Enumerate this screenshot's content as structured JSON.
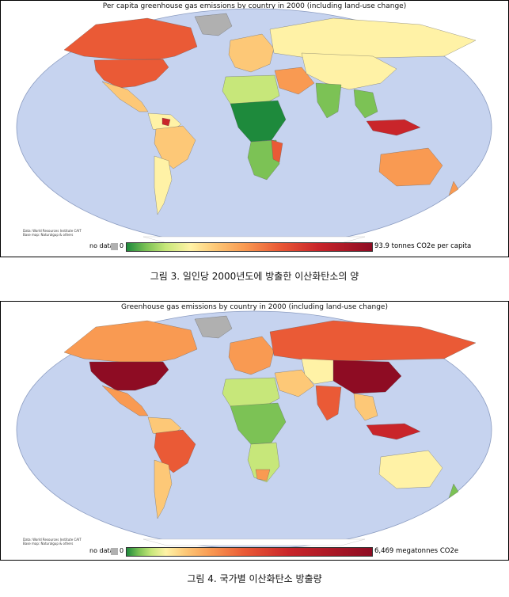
{
  "maps": [
    {
      "title": "Per capita greenhouse gas emissions by country in 2000 (including land-use change)",
      "credit_line1": "Data: World Resources Institute CAIT",
      "credit_line2": "Base map: Naturalgup & others",
      "legend": {
        "no_data_label": "no data",
        "min_label": "0",
        "max_label": "93.9 tonnes CO2e per capita"
      },
      "caption": "그림 3. 일인당 2000년도에 방출한 이산화탄소의 양",
      "colors": {
        "ocean": "#c6d3ef",
        "no_data": "#b0b0b0",
        "ramp": [
          "#1e8a3c",
          "#7cc255",
          "#c7e77a",
          "#fff2a6",
          "#fdc877",
          "#f99a52",
          "#ea5a36",
          "#c9252a",
          "#8e0c23"
        ]
      }
    },
    {
      "title": "Greenhouse gas emissions by country in 2000 (including land-use change)",
      "credit_line1": "Data: World Resources Institute CAIT",
      "credit_line2": "Base map: Naturalgup & others",
      "legend": {
        "no_data_label": "no data",
        "min_label": "0",
        "max_label": "6,469 megatonnes CO2e"
      },
      "caption": "그림 4. 국가별 이산화탄소 방출량",
      "colors": {
        "ocean": "#c6d3ef",
        "no_data": "#b0b0b0",
        "ramp": [
          "#1e8a3c",
          "#7cc255",
          "#c7e77a",
          "#fff2a6",
          "#fdc877",
          "#f99a52",
          "#ea5a36",
          "#c9252a",
          "#8e0c23"
        ]
      }
    }
  ]
}
